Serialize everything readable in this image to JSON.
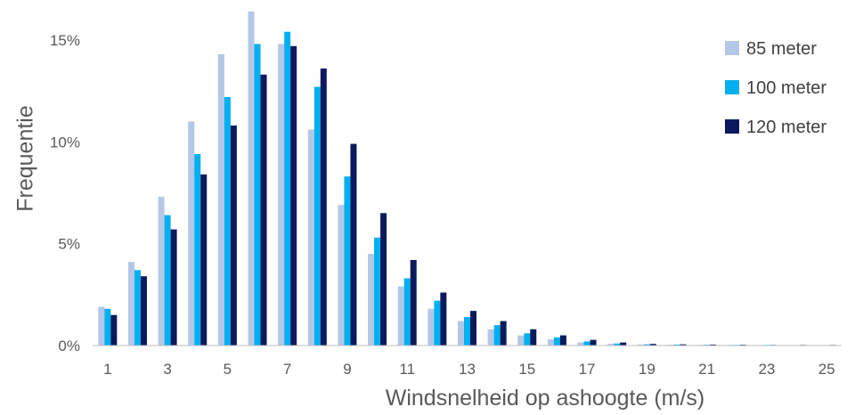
{
  "chart_data": {
    "type": "bar",
    "title": "",
    "xlabel": "Windsnelheid op ashoogte (m/s)",
    "ylabel": "Frequentie",
    "ylim": [
      0,
      0.16
    ],
    "y_ticks": [
      0,
      0.05,
      0.1,
      0.15
    ],
    "y_tick_labels": [
      "0%",
      "5%",
      "10%",
      "15%"
    ],
    "categories": [
      1,
      2,
      3,
      4,
      5,
      6,
      7,
      8,
      9,
      10,
      11,
      12,
      13,
      14,
      15,
      16,
      17,
      18,
      19,
      20,
      21,
      22,
      23,
      24,
      25
    ],
    "x_tick_labels": [
      "1",
      "3",
      "5",
      "7",
      "9",
      "11",
      "13",
      "15",
      "17",
      "19",
      "21",
      "23",
      "25"
    ],
    "grid": false,
    "legend_position": "top-right",
    "series": [
      {
        "name": "85 meter",
        "color": "#b4c7e7",
        "values": [
          0.019,
          0.041,
          0.073,
          0.11,
          0.143,
          0.164,
          0.148,
          0.106,
          0.069,
          0.045,
          0.029,
          0.018,
          0.012,
          0.008,
          0.005,
          0.003,
          0.0015,
          0.0008,
          0.0005,
          0.0004,
          0.0003,
          0.0003,
          0.0002,
          0.0002,
          0.0002
        ]
      },
      {
        "name": "100 meter",
        "color": "#00b0f0",
        "values": [
          0.018,
          0.037,
          0.064,
          0.094,
          0.122,
          0.148,
          0.154,
          0.127,
          0.083,
          0.053,
          0.033,
          0.022,
          0.014,
          0.01,
          0.006,
          0.004,
          0.002,
          0.001,
          0.0006,
          0.0005,
          0.0004,
          0.0003,
          0.0003,
          0.0002,
          0.0002
        ]
      },
      {
        "name": "120 meter",
        "color": "#0b1a5c",
        "values": [
          0.015,
          0.034,
          0.057,
          0.084,
          0.108,
          0.133,
          0.147,
          0.136,
          0.099,
          0.065,
          0.042,
          0.026,
          0.017,
          0.012,
          0.008,
          0.005,
          0.0028,
          0.0015,
          0.0008,
          0.0006,
          0.0005,
          0.0004,
          0.0003,
          0.0003,
          0.0003
        ]
      }
    ]
  }
}
